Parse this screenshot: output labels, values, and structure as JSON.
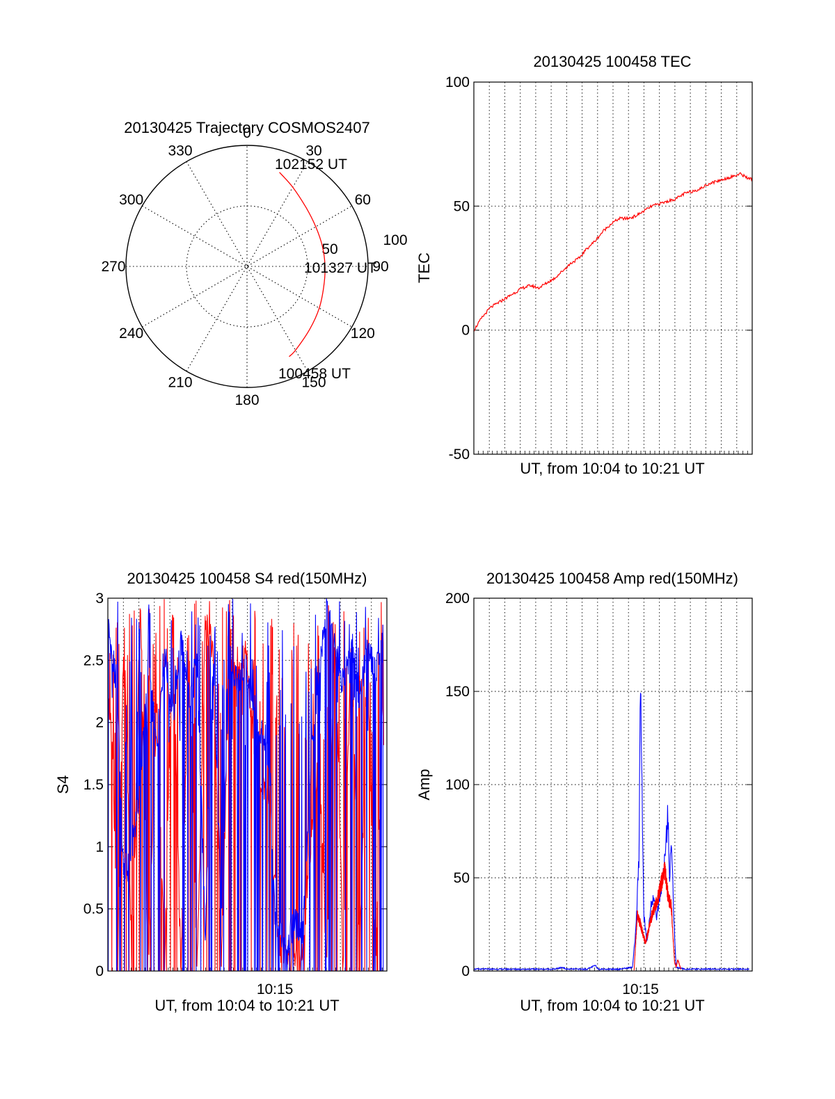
{
  "colors": {
    "red": "#ff0000",
    "blue": "#0000ff",
    "axis": "#000000"
  },
  "chart_data": [
    {
      "type": "polar",
      "title": "20130425 Trajectory COSMOS2407",
      "angle_labels": [
        "0",
        "30",
        "60",
        "90",
        "120",
        "150",
        "180",
        "210",
        "240",
        "270",
        "300",
        "330"
      ],
      "radial_labels": [
        "50",
        "100"
      ],
      "elevation_range": [
        0,
        90
      ],
      "trajectory": {
        "color": "red",
        "points": [
          {
            "azimuth": 19,
            "elevation": 16
          },
          {
            "azimuth": 30,
            "elevation": 22
          },
          {
            "azimuth": 45,
            "elevation": 28
          },
          {
            "azimuth": 60,
            "elevation": 31
          },
          {
            "azimuth": 75,
            "elevation": 32
          },
          {
            "azimuth": 90,
            "elevation": 32
          },
          {
            "azimuth": 105,
            "elevation": 31
          },
          {
            "azimuth": 120,
            "elevation": 28
          },
          {
            "azimuth": 135,
            "elevation": 24
          },
          {
            "azimuth": 150,
            "elevation": 18
          },
          {
            "azimuth": 155,
            "elevation": 16
          }
        ]
      },
      "annotations": [
        {
          "text": "102152 UT",
          "at": "start"
        },
        {
          "text": "101327 UT",
          "at": "middle"
        },
        {
          "text": "100458 UT",
          "at": "end"
        }
      ]
    },
    {
      "type": "line",
      "title": "20130425 100458 TEC",
      "xlabel": "UT, from 10:04 to 10:21 UT",
      "ylabel": "TEC",
      "xlim": [
        0,
        17.2
      ],
      "ylim": [
        -50,
        100
      ],
      "yticks": [
        -50,
        0,
        50,
        100
      ],
      "xtick_labels": [],
      "grid": true,
      "series": [
        {
          "color": "red",
          "x": [
            0.0,
            0.2,
            0.5,
            1.0,
            1.5,
            2.0,
            2.5,
            3.0,
            3.5,
            4.0,
            4.5,
            5.0,
            5.5,
            6.0,
            6.5,
            7.0,
            7.5,
            8.0,
            8.5,
            9.0,
            9.5,
            10.0,
            10.5,
            11.0,
            11.5,
            12.0,
            12.5,
            13.0,
            13.5,
            14.0,
            14.5,
            15.0,
            15.5,
            16.0,
            16.5,
            17.0,
            17.2
          ],
          "y": [
            0,
            2,
            5,
            9,
            11,
            13,
            15,
            17,
            18,
            17,
            19,
            21,
            24,
            27,
            29,
            33,
            36,
            40,
            43,
            45,
            45,
            46,
            48,
            50,
            51,
            52,
            53,
            55,
            56,
            57,
            59,
            60,
            61,
            62,
            63,
            61,
            61
          ]
        }
      ]
    },
    {
      "type": "line",
      "title": "20130425 100458 S4 red(150MHz)",
      "xlabel": "UT, from 10:04 to 10:21 UT",
      "ylabel": "S4",
      "xlim": [
        0,
        17.2
      ],
      "ylim": [
        0,
        3
      ],
      "yticks": [
        "0",
        "0.5",
        "1",
        "1.5",
        "2",
        "2.5",
        "3"
      ],
      "xtick_labels": [
        {
          "x": 10.3,
          "label": "10:15"
        }
      ],
      "grid": true,
      "series": [
        {
          "color": "red",
          "x": [
            0.0,
            0.3,
            0.6,
            1.0,
            1.5,
            2.0,
            2.5,
            3.0,
            3.5,
            4.0,
            4.5,
            5.0,
            5.5,
            6.0,
            6.5,
            7.0,
            7.5,
            8.0,
            8.5,
            9.0,
            9.5,
            10.0,
            10.5,
            11.0,
            11.5,
            12.0,
            12.5,
            13.0,
            13.5,
            14.0,
            14.5,
            15.0,
            15.5,
            16.0,
            16.5,
            17.0
          ],
          "y": [
            2.3,
            1.7,
            0.0,
            2.8,
            0.0,
            3.0,
            0.0,
            2.2,
            0.0,
            2.9,
            0.0,
            2.7,
            0.0,
            2.8,
            2.6,
            0.0,
            2.7,
            2.3,
            2.6,
            1.8,
            1.5,
            1.4,
            0.2,
            0.15,
            0.1,
            0.1,
            1.0,
            1.8,
            0.0,
            2.9,
            0.0,
            2.8,
            0.0,
            2.5,
            0.0,
            2.7
          ]
        },
        {
          "color": "blue",
          "x": [
            0.0,
            0.3,
            0.6,
            0.9,
            1.2,
            1.5,
            2.0,
            2.5,
            3.0,
            3.5,
            4.0,
            4.5,
            5.0,
            5.5,
            6.0,
            6.5,
            7.0,
            7.5,
            8.0,
            8.5,
            9.0,
            9.5,
            10.0,
            10.3,
            10.6,
            11.0,
            11.5,
            12.0,
            12.3,
            12.6,
            13.0,
            13.5,
            14.0,
            14.5,
            15.0,
            15.5,
            16.0,
            16.5,
            17.0
          ],
          "y": [
            2.8,
            2.5,
            2.3,
            0.9,
            0.8,
            1.0,
            1.5,
            2.5,
            1.8,
            2.6,
            2.0,
            2.7,
            2.2,
            2.5,
            0.3,
            2.6,
            0.4,
            2.5,
            2.3,
            2.5,
            2.0,
            1.9,
            1.6,
            0.4,
            0.3,
            0.2,
            0.4,
            0.3,
            1.0,
            1.8,
            2.4,
            2.9,
            2.6,
            2.3,
            2.7,
            2.2,
            2.6,
            2.4,
            2.7
          ]
        }
      ]
    },
    {
      "type": "line",
      "title": "20130425 100458 Amp red(150MHz)",
      "xlabel": "UT, from 10:04 to 10:21 UT",
      "ylabel": "Amp",
      "xlim": [
        0,
        17.2
      ],
      "ylim": [
        0,
        200
      ],
      "yticks": [
        0,
        50,
        100,
        150,
        200
      ],
      "xtick_labels": [
        {
          "x": 10.3,
          "label": "10:15"
        }
      ],
      "grid": true,
      "series": [
        {
          "color": "blue",
          "x": [
            0.0,
            1.0,
            2.0,
            3.0,
            4.0,
            5.0,
            5.5,
            5.7,
            6.0,
            7.0,
            7.5,
            7.7,
            8.0,
            9.0,
            9.8,
            10.0,
            10.2,
            10.3,
            10.4,
            10.5,
            10.7,
            11.0,
            11.3,
            11.6,
            11.8,
            12.0,
            12.1,
            12.2,
            12.4,
            12.5,
            13.0,
            14.0,
            15.0,
            16.0,
            17.0
          ],
          "y": [
            1,
            1,
            1,
            1,
            1,
            1,
            2,
            1,
            1,
            1,
            3,
            1,
            1,
            1,
            2,
            20,
            60,
            165,
            90,
            30,
            15,
            40,
            30,
            45,
            60,
            85,
            50,
            70,
            20,
            2,
            1,
            1,
            1,
            1,
            1
          ]
        },
        {
          "color": "red",
          "x": [
            9.9,
            10.1,
            10.3,
            10.6,
            11.0,
            11.4,
            11.8,
            12.0,
            12.2,
            12.4,
            12.5,
            12.6,
            12.8
          ],
          "y": [
            0,
            30,
            25,
            15,
            30,
            40,
            55,
            40,
            35,
            5,
            2,
            6,
            1
          ]
        }
      ]
    }
  ]
}
